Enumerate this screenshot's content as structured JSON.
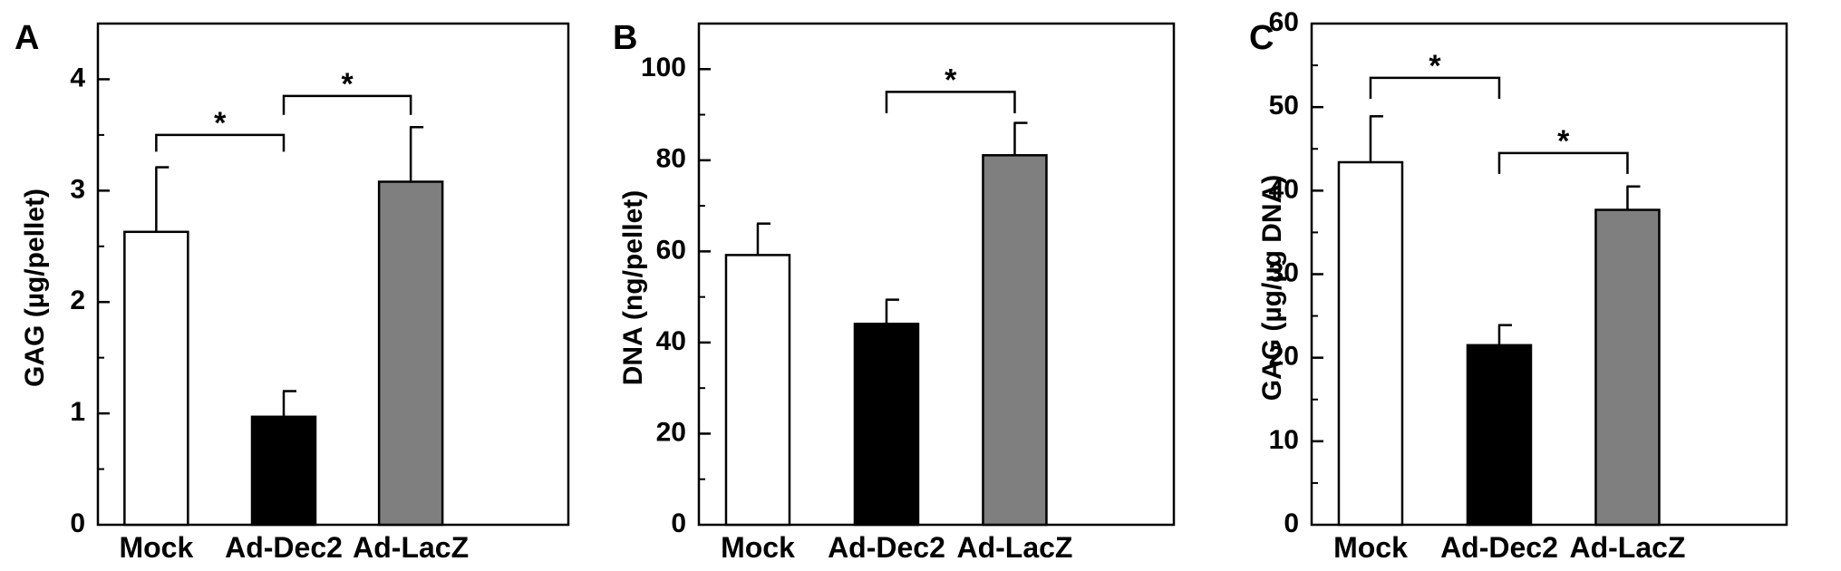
{
  "colors": {
    "axis": "#000000",
    "Mock": "#ffffff",
    "Ad-Dec2": "#000000",
    "Ad-LacZ": "#7f7f7f"
  },
  "chart_data": [
    {
      "panel": "A",
      "type": "bar",
      "categories": [
        "Mock",
        "Ad-Dec2",
        "Ad-LacZ"
      ],
      "values": [
        2.63,
        0.97,
        3.08
      ],
      "errors": [
        0.58,
        0.23,
        0.49
      ],
      "ylabel": "GAG (µg/pellet)",
      "ylim": [
        0,
        4.5
      ],
      "yticks": [
        0,
        1,
        2,
        3,
        4
      ],
      "minor_step": 0.5,
      "significance": [
        {
          "from": 0,
          "to": 1,
          "at": 3.5,
          "drop_left": 0.15,
          "drop_right": 0.15,
          "label": "*"
        },
        {
          "from": 1,
          "to": 2,
          "at": 3.85,
          "drop_left": 0.17,
          "drop_right": 0.17,
          "label": "*"
        }
      ]
    },
    {
      "panel": "B",
      "type": "bar",
      "categories": [
        "Mock",
        "Ad-Dec2",
        "Ad-LacZ"
      ],
      "values": [
        59.2,
        44.1,
        81.1
      ],
      "errors": [
        6.9,
        5.3,
        7.1
      ],
      "ylabel": "DNA (ng/pellet)",
      "ylim": [
        0,
        110
      ],
      "yticks": [
        0,
        20,
        40,
        60,
        80,
        100
      ],
      "minor_step": 10,
      "significance": [
        {
          "from": 1,
          "to": 2,
          "at": 95,
          "drop_left": 4.7,
          "drop_right": 4.7,
          "label": "*"
        }
      ]
    },
    {
      "panel": "C",
      "type": "bar",
      "categories": [
        "Mock",
        "Ad-Dec2",
        "Ad-LacZ"
      ],
      "values": [
        43.4,
        21.5,
        37.7
      ],
      "errors": [
        5.5,
        2.4,
        2.8
      ],
      "ylabel": "GAG (µg/µg DNA)",
      "ylim": [
        0,
        60
      ],
      "yticks": [
        0,
        10,
        20,
        30,
        40,
        50,
        60
      ],
      "minor_step": 5,
      "significance": [
        {
          "from": 0,
          "to": 1,
          "at": 53.5,
          "drop_left": 2.5,
          "drop_right": 2.5,
          "label": "*"
        },
        {
          "from": 1,
          "to": 2,
          "at": 44.5,
          "drop_left": 2.5,
          "drop_right": 2.5,
          "label": "*"
        }
      ]
    }
  ]
}
